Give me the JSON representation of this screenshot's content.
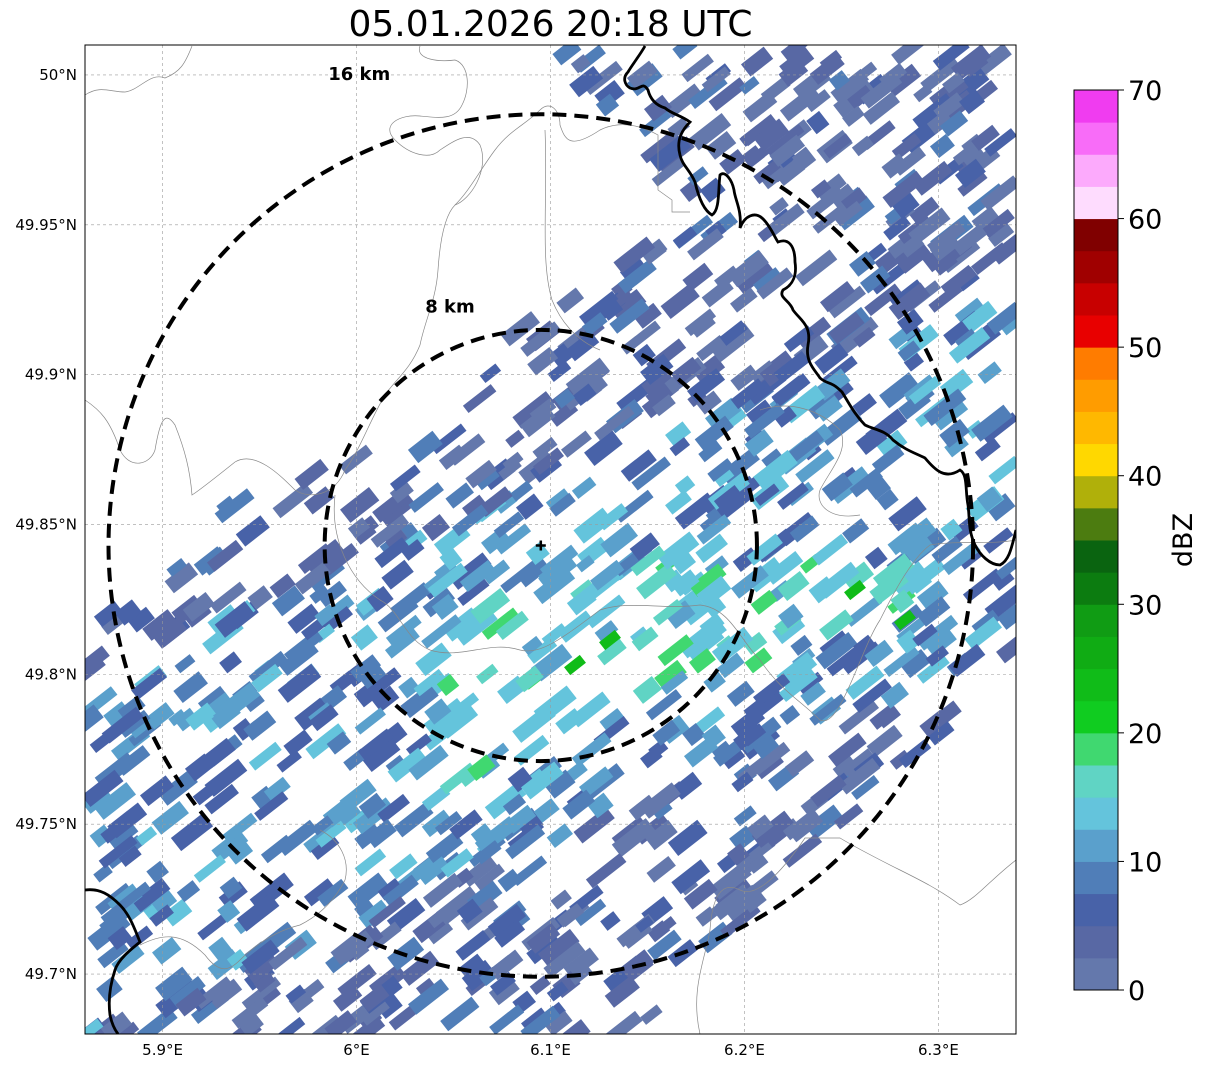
{
  "title": "05.01.2026 20:18 UTC",
  "map": {
    "lon_range": [
      5.86,
      6.34
    ],
    "lat_range": [
      49.68,
      50.01
    ],
    "lat_ticks": [
      {
        "value": 49.7,
        "label": "49.7°N"
      },
      {
        "value": 49.75,
        "label": "49.75°N"
      },
      {
        "value": 49.8,
        "label": "49.8°N"
      },
      {
        "value": 49.85,
        "label": "49.85°N"
      },
      {
        "value": 49.9,
        "label": "49.9°N"
      },
      {
        "value": 49.95,
        "label": "49.95°N"
      },
      {
        "value": 50.0,
        "label": "50°N"
      }
    ],
    "lon_ticks": [
      {
        "value": 5.9,
        "label": "5.9°E"
      },
      {
        "value": 6.0,
        "label": "6°E"
      },
      {
        "value": 6.1,
        "label": "6.1°E"
      },
      {
        "value": 6.2,
        "label": "6.2°E"
      },
      {
        "value": 6.3,
        "label": "6.3°E"
      }
    ],
    "radar_site": {
      "lon": 6.095,
      "lat": 49.843
    },
    "range_rings": [
      {
        "radius_km": 8,
        "label": "8 km"
      },
      {
        "radius_km": 16,
        "label": "16 km"
      }
    ],
    "colorbar": {
      "unit": "dBZ",
      "min": 0,
      "max": 70,
      "tick_values": [
        0,
        10,
        20,
        30,
        40,
        50,
        60,
        70
      ],
      "tick_labels": [
        "0",
        "10",
        "20",
        "30",
        "40",
        "50",
        "60",
        "70"
      ],
      "colors": [
        "#6478ac",
        "#5868a4",
        "#4862a8",
        "#507eb8",
        "#5aa0cc",
        "#64c4dc",
        "#60d4c4",
        "#40d870",
        "#10cc20",
        "#10bc18",
        "#10ac14",
        "#109c14",
        "#0c7c10",
        "#0a6410",
        "#4c7c10",
        "#b0b00a",
        "#ffd800",
        "#ffb800",
        "#ff9c00",
        "#ff7c00",
        "#e80000",
        "#c80000",
        "#a00000",
        "#800000",
        "#fedcfe",
        "#fcaafc",
        "#f86cf8",
        "#f03cf0"
      ]
    }
  }
}
